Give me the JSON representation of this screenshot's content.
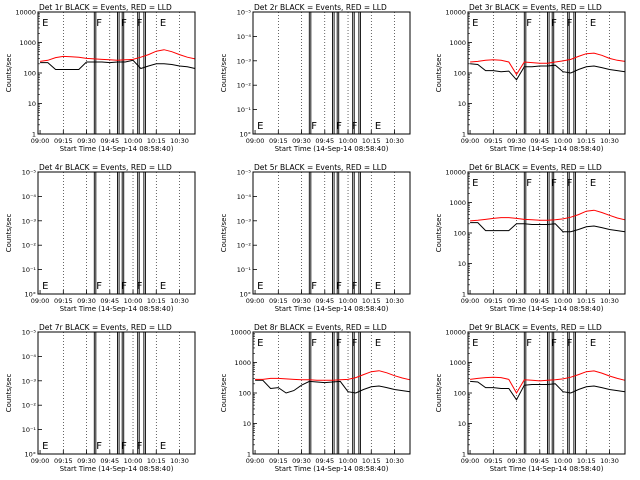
{
  "figure": {
    "start_time_label": "Start Time (14-Sep-14 08:58:40)",
    "ylabel": "Counts/sec",
    "x_ticks": [
      "09:00",
      "09:15",
      "09:30",
      "09:45",
      "10:00",
      "10:15",
      "10:30"
    ],
    "y_ticks_log": [
      "1",
      "10",
      "100",
      "1000",
      "10000"
    ],
    "y_ticks_empty": [
      "10°",
      "10⁻¹",
      "10⁻²",
      "10⁻³",
      "10⁻⁴",
      "10⁻⁵"
    ],
    "colors": {
      "events": "#000000",
      "lld": "#ff0000",
      "axes": "#000000"
    }
  },
  "chart_data": [
    {
      "type": "line",
      "title": "Det 1r BLACK = Events, RED = LLD",
      "y_scale": "log",
      "ylim": [
        1,
        10000
      ],
      "xlim": [
        "08:58:40",
        "10:40"
      ],
      "series": [
        {
          "name": "Events",
          "color": "#000000",
          "x": [
            "09:00",
            "09:05",
            "09:10",
            "09:15",
            "09:20",
            "09:25",
            "09:30",
            "09:35",
            "09:40",
            "09:45",
            "09:50",
            "09:55",
            "10:00",
            "10:05",
            "10:10",
            "10:15",
            "10:20",
            "10:25",
            "10:30",
            "10:35",
            "10:40"
          ],
          "values": [
            220,
            220,
            130,
            130,
            130,
            130,
            230,
            230,
            230,
            220,
            230,
            230,
            260,
            140,
            170,
            200,
            200,
            190,
            170,
            160,
            140
          ]
        },
        {
          "name": "LLD",
          "color": "#ff0000",
          "x": [
            "09:00",
            "09:05",
            "09:10",
            "09:15",
            "09:20",
            "09:25",
            "09:30",
            "09:35",
            "09:40",
            "09:45",
            "09:50",
            "09:55",
            "10:00",
            "10:05",
            "10:10",
            "10:15",
            "10:20",
            "10:25",
            "10:30",
            "10:35",
            "10:40"
          ],
          "values": [
            240,
            260,
            320,
            350,
            340,
            330,
            300,
            290,
            280,
            270,
            260,
            270,
            280,
            330,
            400,
            520,
            580,
            500,
            400,
            330,
            290
          ]
        }
      ],
      "markers": [
        "E",
        "F",
        "F",
        "F",
        "E"
      ]
    },
    {
      "type": "line",
      "title": "Det 2r BLACK = Events, RED = LLD",
      "y_scale": "empty",
      "ylim": [
        0,
        1
      ],
      "xlim": [
        "08:58:40",
        "10:40"
      ],
      "series": [],
      "markers": [
        "E",
        "F",
        "F",
        "F",
        "E"
      ]
    },
    {
      "type": "line",
      "title": "Det 3r BLACK = Events, RED = LLD",
      "y_scale": "log",
      "ylim": [
        1,
        10000
      ],
      "xlim": [
        "08:58:40",
        "10:40"
      ],
      "series": [
        {
          "name": "Events",
          "color": "#000000",
          "x": [
            "09:00",
            "09:05",
            "09:10",
            "09:15",
            "09:20",
            "09:25",
            "09:30",
            "09:35",
            "09:40",
            "09:45",
            "09:50",
            "09:55",
            "10:00",
            "10:05",
            "10:10",
            "10:15",
            "10:20",
            "10:25",
            "10:30",
            "10:35",
            "10:40"
          ],
          "values": [
            200,
            190,
            120,
            120,
            110,
            115,
            60,
            160,
            160,
            170,
            170,
            180,
            110,
            100,
            130,
            160,
            170,
            150,
            130,
            120,
            110
          ]
        },
        {
          "name": "LLD",
          "color": "#ff0000",
          "x": [
            "09:00",
            "09:05",
            "09:10",
            "09:15",
            "09:20",
            "09:25",
            "09:30",
            "09:35",
            "09:40",
            "09:45",
            "09:50",
            "09:55",
            "10:00",
            "10:05",
            "10:10",
            "10:15",
            "10:20",
            "10:25",
            "10:30",
            "10:35",
            "10:40"
          ],
          "values": [
            230,
            240,
            260,
            270,
            260,
            230,
            90,
            230,
            220,
            210,
            210,
            230,
            250,
            280,
            350,
            430,
            450,
            380,
            300,
            260,
            240
          ]
        }
      ],
      "markers": [
        "E",
        "F",
        "F",
        "F",
        "E"
      ]
    },
    {
      "type": "line",
      "title": "Det 4r BLACK = Events, RED = LLD",
      "y_scale": "empty",
      "ylim": [
        0,
        1
      ],
      "xlim": [
        "08:58:40",
        "10:40"
      ],
      "series": [],
      "markers": [
        "E",
        "F",
        "F",
        "F",
        "E"
      ]
    },
    {
      "type": "line",
      "title": "Det 5r BLACK = Events, RED = LLD",
      "y_scale": "empty",
      "ylim": [
        0,
        1
      ],
      "xlim": [
        "08:58:40",
        "10:40"
      ],
      "series": [],
      "markers": [
        "E",
        "F",
        "F",
        "F",
        "E"
      ]
    },
    {
      "type": "line",
      "title": "Det 6r BLACK = Events, RED = LLD",
      "y_scale": "log",
      "ylim": [
        1,
        10000
      ],
      "xlim": [
        "08:58:40",
        "10:40"
      ],
      "series": [
        {
          "name": "Events",
          "color": "#000000",
          "x": [
            "09:00",
            "09:05",
            "09:10",
            "09:15",
            "09:20",
            "09:25",
            "09:30",
            "09:35",
            "09:40",
            "09:45",
            "09:50",
            "09:55",
            "10:00",
            "10:05",
            "10:10",
            "10:15",
            "10:20",
            "10:25",
            "10:30",
            "10:35",
            "10:40"
          ],
          "values": [
            220,
            220,
            120,
            120,
            120,
            120,
            200,
            200,
            190,
            190,
            190,
            200,
            110,
            110,
            130,
            160,
            170,
            150,
            130,
            120,
            110
          ]
        },
        {
          "name": "LLD",
          "color": "#ff0000",
          "x": [
            "09:00",
            "09:05",
            "09:10",
            "09:15",
            "09:20",
            "09:25",
            "09:30",
            "09:35",
            "09:40",
            "09:45",
            "09:50",
            "09:55",
            "10:00",
            "10:05",
            "10:10",
            "10:15",
            "10:20",
            "10:25",
            "10:30",
            "10:35",
            "10:40"
          ],
          "values": [
            250,
            260,
            280,
            300,
            320,
            320,
            300,
            280,
            270,
            260,
            260,
            270,
            290,
            330,
            400,
            520,
            560,
            470,
            380,
            310,
            270
          ]
        }
      ],
      "markers": [
        "E",
        "F",
        "F",
        "F",
        "E"
      ]
    },
    {
      "type": "line",
      "title": "Det 7r BLACK = Events, RED = LLD",
      "y_scale": "empty",
      "ylim": [
        0,
        1
      ],
      "xlim": [
        "08:58:40",
        "10:40"
      ],
      "series": [],
      "markers": [
        "E",
        "F",
        "F",
        "F",
        "E"
      ]
    },
    {
      "type": "line",
      "title": "Det 8r BLACK = Events, RED = LLD",
      "y_scale": "log",
      "ylim": [
        1,
        10000
      ],
      "xlim": [
        "08:58:40",
        "10:40"
      ],
      "series": [
        {
          "name": "Events",
          "color": "#000000",
          "x": [
            "09:00",
            "09:05",
            "09:10",
            "09:15",
            "09:20",
            "09:25",
            "09:30",
            "09:35",
            "09:40",
            "09:45",
            "09:50",
            "09:55",
            "10:00",
            "10:05",
            "10:10",
            "10:15",
            "10:20",
            "10:25",
            "10:30",
            "10:35",
            "10:40"
          ],
          "values": [
            260,
            260,
            140,
            150,
            100,
            120,
            180,
            240,
            230,
            220,
            230,
            240,
            110,
            100,
            130,
            160,
            170,
            150,
            130,
            120,
            110
          ]
        },
        {
          "name": "LLD",
          "color": "#ff0000",
          "x": [
            "09:00",
            "09:05",
            "09:10",
            "09:15",
            "09:20",
            "09:25",
            "09:30",
            "09:35",
            "09:40",
            "09:45",
            "09:50",
            "09:55",
            "10:00",
            "10:05",
            "10:10",
            "10:15",
            "10:20",
            "10:25",
            "10:30",
            "10:35",
            "10:40"
          ],
          "values": [
            280,
            280,
            300,
            300,
            290,
            280,
            270,
            270,
            260,
            260,
            260,
            270,
            280,
            320,
            400,
            500,
            540,
            460,
            370,
            310,
            270
          ]
        }
      ],
      "markers": [
        "E",
        "F",
        "F",
        "F",
        "E"
      ]
    },
    {
      "type": "line",
      "title": "Det 9r BLACK = Events, RED = LLD",
      "y_scale": "log",
      "ylim": [
        1,
        10000
      ],
      "xlim": [
        "08:58:40",
        "10:40"
      ],
      "series": [
        {
          "name": "Events",
          "color": "#000000",
          "x": [
            "09:00",
            "09:05",
            "09:10",
            "09:15",
            "09:20",
            "09:25",
            "09:30",
            "09:35",
            "09:40",
            "09:45",
            "09:50",
            "09:55",
            "10:00",
            "10:05",
            "10:10",
            "10:15",
            "10:20",
            "10:25",
            "10:30",
            "10:35",
            "10:40"
          ],
          "values": [
            240,
            230,
            150,
            150,
            140,
            140,
            60,
            180,
            190,
            190,
            190,
            200,
            110,
            100,
            130,
            160,
            170,
            150,
            130,
            120,
            110
          ]
        },
        {
          "name": "LLD",
          "color": "#ff0000",
          "x": [
            "09:00",
            "09:05",
            "09:10",
            "09:15",
            "09:20",
            "09:25",
            "09:30",
            "09:35",
            "09:40",
            "09:45",
            "09:50",
            "09:55",
            "10:00",
            "10:05",
            "10:10",
            "10:15",
            "10:20",
            "10:25",
            "10:30",
            "10:35",
            "10:40"
          ],
          "values": [
            280,
            300,
            320,
            330,
            320,
            280,
            100,
            270,
            260,
            250,
            260,
            270,
            290,
            330,
            400,
            500,
            530,
            450,
            360,
            300,
            260
          ]
        }
      ],
      "markers": [
        "E",
        "F",
        "F",
        "F",
        "E"
      ]
    }
  ]
}
